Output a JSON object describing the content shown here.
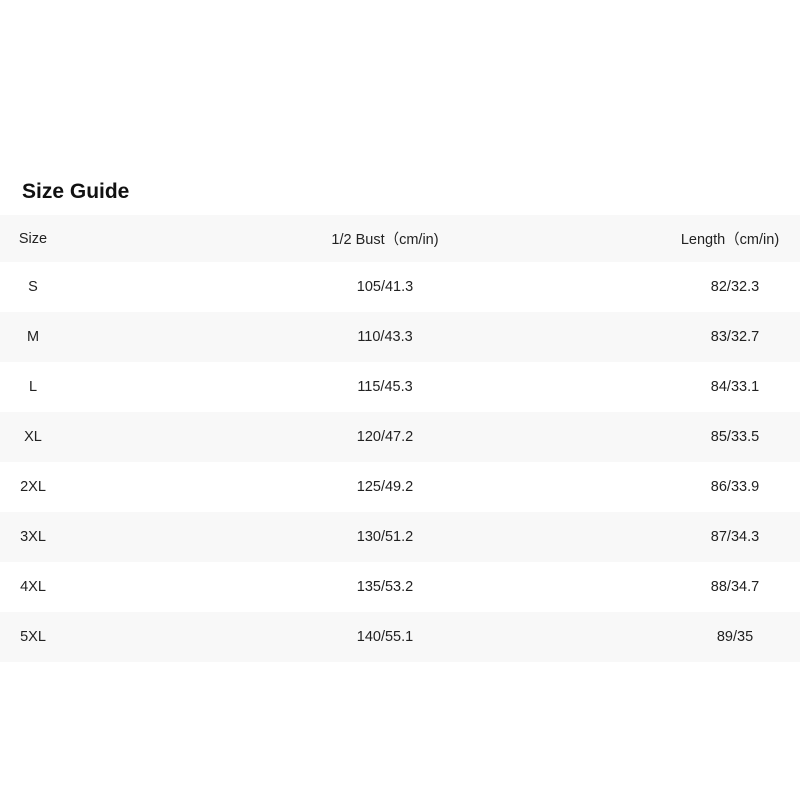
{
  "title": "Size Guide",
  "headers": [
    "Size",
    "1/2 Bust（cm/in)",
    "Length（cm/in)"
  ],
  "rows": [
    [
      "S",
      "105/41.3",
      "82/32.3"
    ],
    [
      "M",
      "110/43.3",
      "83/32.7"
    ],
    [
      "L",
      "115/45.3",
      "84/33.1"
    ],
    [
      "XL",
      "120/47.2",
      "85/33.5"
    ],
    [
      "2XL",
      "125/49.2",
      "86/33.9"
    ],
    [
      "3XL",
      "130/51.2",
      "87/34.3"
    ],
    [
      "4XL",
      "135/53.2",
      "88/34.7"
    ],
    [
      "5XL",
      "140/55.1",
      "89/35"
    ]
  ]
}
